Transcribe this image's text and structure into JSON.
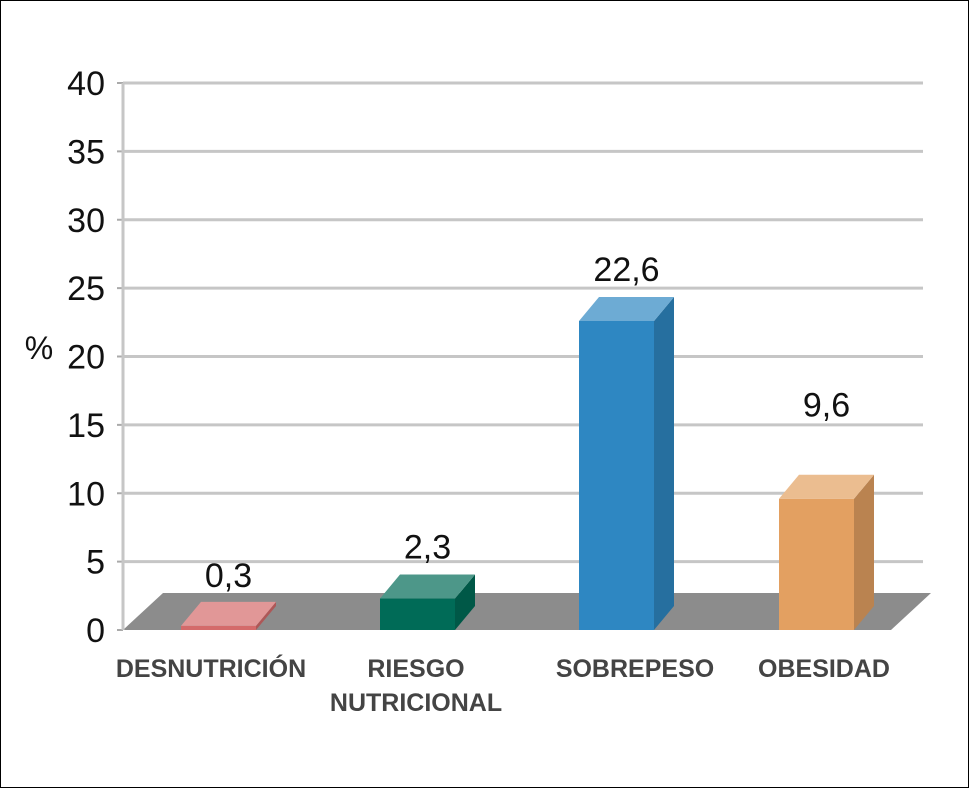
{
  "chart_data": {
    "type": "bar",
    "title": "",
    "xlabel": "",
    "ylabel": "%",
    "ylim": [
      0,
      40
    ],
    "yticks": [
      "0",
      "5",
      "10",
      "15",
      "20",
      "25",
      "30",
      "35",
      "40"
    ],
    "categories": [
      [
        "DESNUTRICIÓN"
      ],
      [
        "RIESGO",
        "NUTRICIONAL"
      ],
      [
        "SOBREPESO"
      ],
      [
        "OBESIDAD"
      ]
    ],
    "values": [
      0.3,
      2.3,
      22.6,
      9.6
    ],
    "value_labels": [
      "0,3",
      "2,3",
      "22,6",
      "9,6"
    ],
    "colors": [
      "#d46a6a",
      "#006b57",
      "#2e87c2",
      "#e3a061"
    ],
    "grid": true,
    "legend": "none",
    "style": "3d"
  }
}
